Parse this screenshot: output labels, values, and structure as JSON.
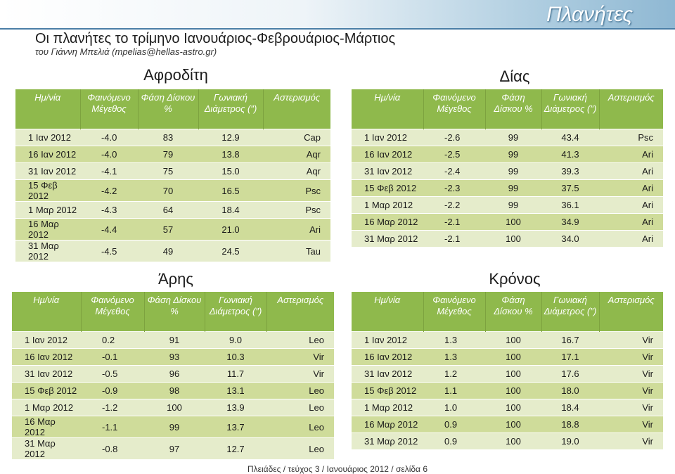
{
  "header": {
    "section": "Πλανήτες",
    "title": "Οι πλανήτες το τρίμηνο Ιανουάριος-Φεβρουάριος-Μάρτιος",
    "byline": "του Γιάννη Μπελιά (mpelias@hellas-astro.gr)"
  },
  "columns": {
    "date": "Ημ/νία",
    "magnitude": "Φαινόμενο Μέγεθος",
    "phase": "Φάση Δίσκου %",
    "diameter": "Γωνιακή Διάμετρος (″)",
    "constellation": "Αστερισμός"
  },
  "venus": {
    "name": "Αφροδίτη",
    "rows": [
      [
        "1 Ιαν 2012",
        "-4.0",
        "83",
        "12.9",
        "Cap"
      ],
      [
        "16 Ιαν 2012",
        "-4.0",
        "79",
        "13.8",
        "Aqr"
      ],
      [
        "31 Ιαν 2012",
        "-4.1",
        "75",
        "15.0",
        "Aqr"
      ],
      [
        "15 Φεβ 2012",
        "-4.2",
        "70",
        "16.5",
        "Psc"
      ],
      [
        "1 Μαρ 2012",
        "-4.3",
        "64",
        "18.4",
        "Psc"
      ],
      [
        "16 Μαρ 2012",
        "-4.4",
        "57",
        "21.0",
        "Ari"
      ],
      [
        "31 Μαρ 2012",
        "-4.5",
        "49",
        "24.5",
        "Tau"
      ]
    ]
  },
  "jupiter": {
    "name": "Δίας",
    "rows": [
      [
        "1 Ιαν 2012",
        "-2.6",
        "99",
        "43.4",
        "Psc"
      ],
      [
        "16 Ιαν 2012",
        "-2.5",
        "99",
        "41.3",
        "Ari"
      ],
      [
        "31 Ιαν 2012",
        "-2.4",
        "99",
        "39.3",
        "Ari"
      ],
      [
        "15 Φεβ 2012",
        "-2.3",
        "99",
        "37.5",
        "Ari"
      ],
      [
        "1 Μαρ 2012",
        "-2.2",
        "99",
        "36.1",
        "Ari"
      ],
      [
        "16 Μαρ 2012",
        "-2.1",
        "100",
        "34.9",
        "Ari"
      ],
      [
        "31 Μαρ 2012",
        "-2.1",
        "100",
        "34.0",
        "Ari"
      ]
    ]
  },
  "mars": {
    "name": "Άρης",
    "rows": [
      [
        "1 Ιαν 2012",
        "0.2",
        "91",
        "9.0",
        "Leo"
      ],
      [
        "16 Ιαν 2012",
        "-0.1",
        "93",
        "10.3",
        "Vir"
      ],
      [
        "31 Ιαν 2012",
        "-0.5",
        "96",
        "11.7",
        "Vir"
      ],
      [
        "15 Φεβ 2012",
        "-0.9",
        "98",
        "13.1",
        "Leo"
      ],
      [
        "1 Μαρ 2012",
        "-1.2",
        "100",
        "13.9",
        "Leo"
      ],
      [
        "16 Μαρ 2012",
        "-1.1",
        "99",
        "13.7",
        "Leo"
      ],
      [
        "31 Μαρ 2012",
        "-0.8",
        "97",
        "12.7",
        "Leo"
      ]
    ]
  },
  "saturn": {
    "name": "Κρόνος",
    "rows": [
      [
        "1 Ιαν 2012",
        "1.3",
        "100",
        "16.7",
        "Vir"
      ],
      [
        "16 Ιαν 2012",
        "1.3",
        "100",
        "17.1",
        "Vir"
      ],
      [
        "31 Ιαν 2012",
        "1.2",
        "100",
        "17.6",
        "Vir"
      ],
      [
        "15 Φεβ 2012",
        "1.1",
        "100",
        "18.0",
        "Vir"
      ],
      [
        "1 Μαρ 2012",
        "1.0",
        "100",
        "18.4",
        "Vir"
      ],
      [
        "16 Μαρ 2012",
        "0.9",
        "100",
        "18.8",
        "Vir"
      ],
      [
        "31 Μαρ 2012",
        "0.9",
        "100",
        "19.0",
        "Vir"
      ]
    ]
  },
  "footer": "Πλειάδες / τεύχος 3 / Ιανουάριος 2012 / σελίδα 6",
  "colors": {
    "header_green": "#8fb94c",
    "row_light": "#e5eccb",
    "row_dark": "#cfdc9a",
    "banner_blue": "#8fb8d3"
  }
}
